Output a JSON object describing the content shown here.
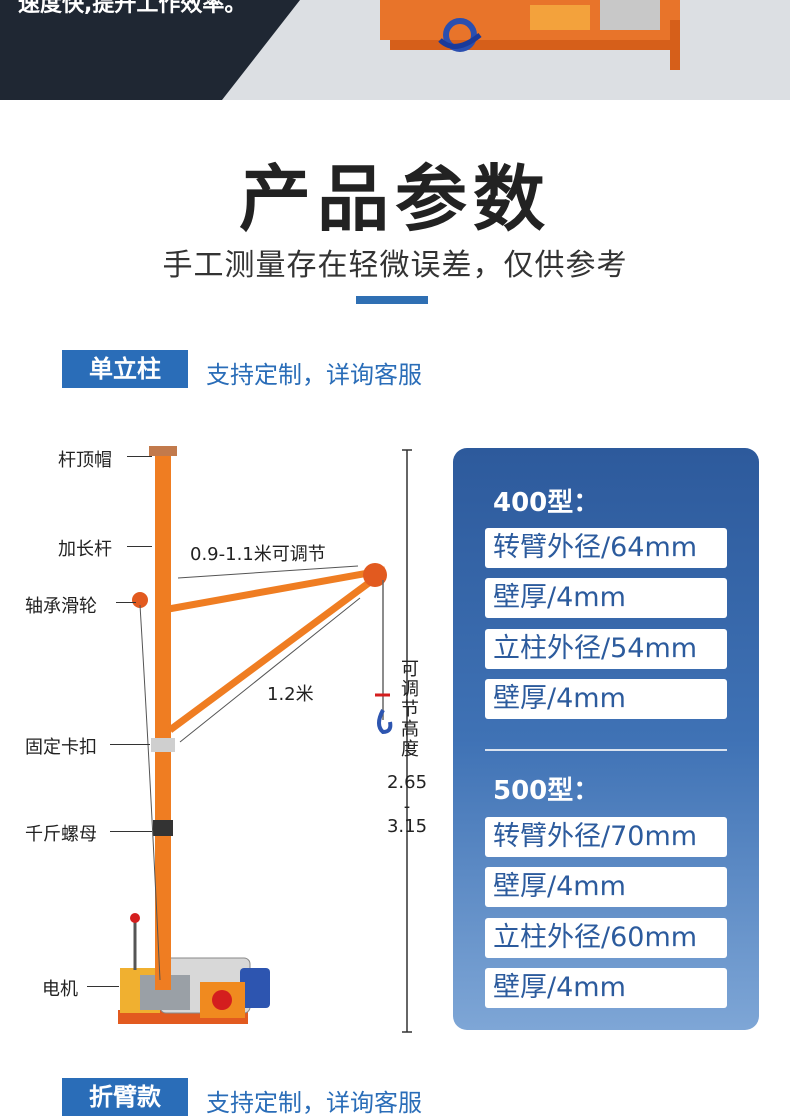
{
  "banner": {
    "partial_text": "速度快,提升工作效率。"
  },
  "header": {
    "title": "产品参数",
    "subtitle": "手工测量存在轻微误差，仅供参考"
  },
  "section1": {
    "tag": "单立柱",
    "note": "支持定制，详询客服"
  },
  "section2": {
    "tag": "折臂款",
    "note": "支持定制，详询客服"
  },
  "crane_labels": {
    "cap": "杆顶帽",
    "extension": "加长杆",
    "pulley": "轴承滑轮",
    "clamp": "固定卡扣",
    "jack_nut": "千斤螺母",
    "motor": "电机",
    "arm_range": "0.9-1.1米可调节",
    "arm_length": "1.2米",
    "adjustable_height_label": "可调节高度",
    "height_min": "2.65",
    "height_dash": "-",
    "height_max": "3.15"
  },
  "specs": {
    "model_400": {
      "title": "400型：",
      "items": [
        "转臂外径/64mm",
        "壁厚/4mm",
        "立柱外径/54mm",
        "壁厚/4mm"
      ]
    },
    "model_500": {
      "title": "500型：",
      "items": [
        "转臂外径/70mm",
        "壁厚/4mm",
        "立柱外径/60mm",
        "壁厚/4mm"
      ]
    }
  },
  "colors": {
    "accent_blue": "#2a6db8",
    "crane_orange": "#ef7d22",
    "dark_banner": "#1f2733"
  }
}
